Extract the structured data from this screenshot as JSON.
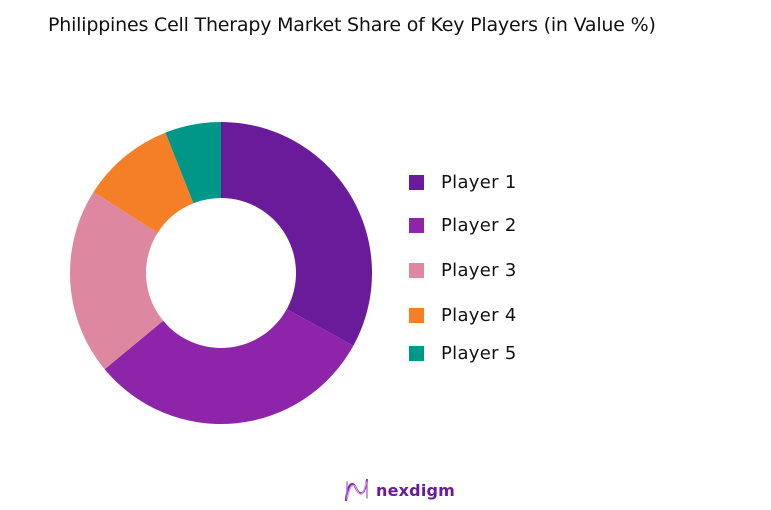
{
  "title": "Philippines Cell Therapy Market Share of Key Players (in Value %)",
  "chart_data": {
    "type": "pie",
    "subtype": "donut",
    "title": "Philippines Cell Therapy Market Share of Key Players (in Value %)",
    "categories": [
      "Player 1",
      "Player 2",
      "Player 3",
      "Player 4",
      "Player 5"
    ],
    "values": [
      33,
      31,
      20,
      10,
      6
    ],
    "colors": [
      "#6a1b9a",
      "#8e24aa",
      "#de87a0",
      "#f57f26",
      "#009688"
    ],
    "start_angle": "12 o'clock, clockwise",
    "legend_position": "right",
    "data_labels": false
  },
  "legend": {
    "items": [
      {
        "label": "Player 1",
        "color": "#6a1b9a"
      },
      {
        "label": "Player 2",
        "color": "#8e24aa"
      },
      {
        "label": "Player 3",
        "color": "#de87a0"
      },
      {
        "label": "Player 4",
        "color": "#f57f26"
      },
      {
        "label": "Player 5",
        "color": "#009688"
      }
    ]
  },
  "brand": {
    "name": "nexdigm",
    "icon": "nexdigm-logo-icon",
    "color": "#6a1b9a"
  }
}
